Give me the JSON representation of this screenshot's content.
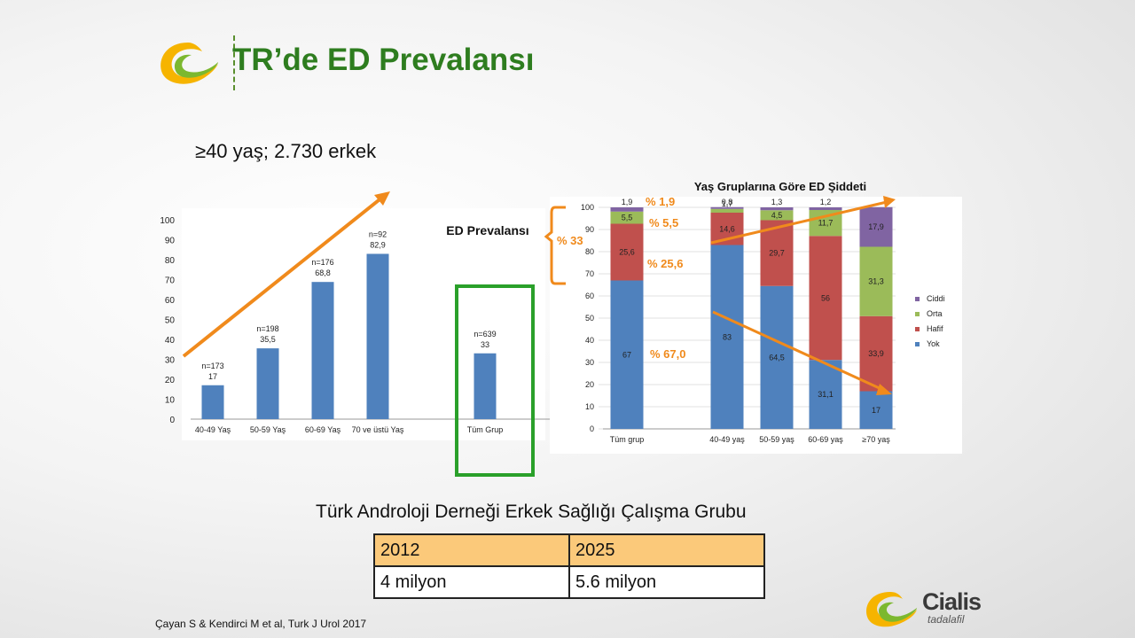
{
  "slide": {
    "title": "TR’de ED Prevalansı",
    "subtitle": "≥40 yaş; 2.730 erkek",
    "study_group": "Türk Androloji Derneği Erkek Sağlığı Çalışma Grubu",
    "citation": "Çayan S & Kendirci M et al, Turk J Urol 2017",
    "brand": {
      "name": "Cialis",
      "tagline": "tadalafil",
      "logo_icon": "swoosh-logo-icon"
    }
  },
  "colors": {
    "title_green": "#2e7d1f",
    "bar_blue": "#4f81bd",
    "hafif_red": "#c0504d",
    "orta_green": "#9bbb59",
    "ciddi_purple": "#8064a2",
    "arrow_orange": "#f08a1c",
    "highlight_green": "#2aa02a",
    "table_header": "#fbc97a"
  },
  "table": {
    "headers": [
      "2012",
      "2025"
    ],
    "values": [
      "4 milyon",
      "5.6 milyon"
    ]
  },
  "chart_data": [
    {
      "type": "bar",
      "title": "ED Prevalansı",
      "categories": [
        "40-49 Yaş",
        "50-59 Yaş",
        "60-69 Yaş",
        "70 ve üstü Yaş",
        "Tüm Grup"
      ],
      "values": [
        17,
        35.5,
        68.8,
        82.9,
        33
      ],
      "value_labels": [
        "17",
        "35,5",
        "68,8",
        "82,9",
        "33"
      ],
      "n_labels": [
        "n=173",
        "n=198",
        "n=176",
        "n=92",
        "n=639"
      ],
      "ylim": [
        0,
        100
      ],
      "yticks": [
        "0",
        "10",
        "20",
        "30",
        "40",
        "50",
        "60",
        "70",
        "80",
        "90",
        "100"
      ],
      "highlight": "Tüm Grup",
      "trend_arrow": "increasing"
    },
    {
      "type": "bar",
      "stacked": true,
      "title": "Yaş Gruplarına Göre ED Şiddeti",
      "categories": [
        "Tüm grup",
        "40-49 yaş",
        "50-59 yaş",
        "60-69 yaş",
        "≥70 yaş"
      ],
      "series": [
        {
          "name": "Yok",
          "values": [
            67,
            83,
            64.5,
            31.1,
            17
          ],
          "labels": [
            "67",
            "83",
            "64,5",
            "31,1",
            "17"
          ]
        },
        {
          "name": "Hafif",
          "values": [
            25.6,
            14.6,
            29.7,
            56,
            33.9
          ],
          "labels": [
            "25,6",
            "14,6",
            "29,7",
            "56",
            "33,9"
          ]
        },
        {
          "name": "Orta",
          "values": [
            5.5,
            1.7,
            4.5,
            11.7,
            31.3
          ],
          "labels": [
            "5,5",
            "1,7",
            "4,5",
            "11,7",
            "31,3"
          ]
        },
        {
          "name": "Ciddi",
          "values": [
            1.9,
            0.8,
            1.3,
            1.2,
            17.9
          ],
          "labels": [
            "1,9",
            "0,8",
            "1,3",
            "1,2",
            "17,9"
          ]
        }
      ],
      "ylim": [
        0,
        100
      ],
      "yticks": [
        "0",
        "10",
        "20",
        "30",
        "40",
        "50",
        "60",
        "70",
        "80",
        "90",
        "100"
      ],
      "legend_position": "right",
      "annotations": {
        "ciddi": "% 1,9",
        "orta": "% 5,5",
        "hafif": "% 25,6",
        "yok": "% 67,0",
        "total": "% 33"
      }
    }
  ]
}
